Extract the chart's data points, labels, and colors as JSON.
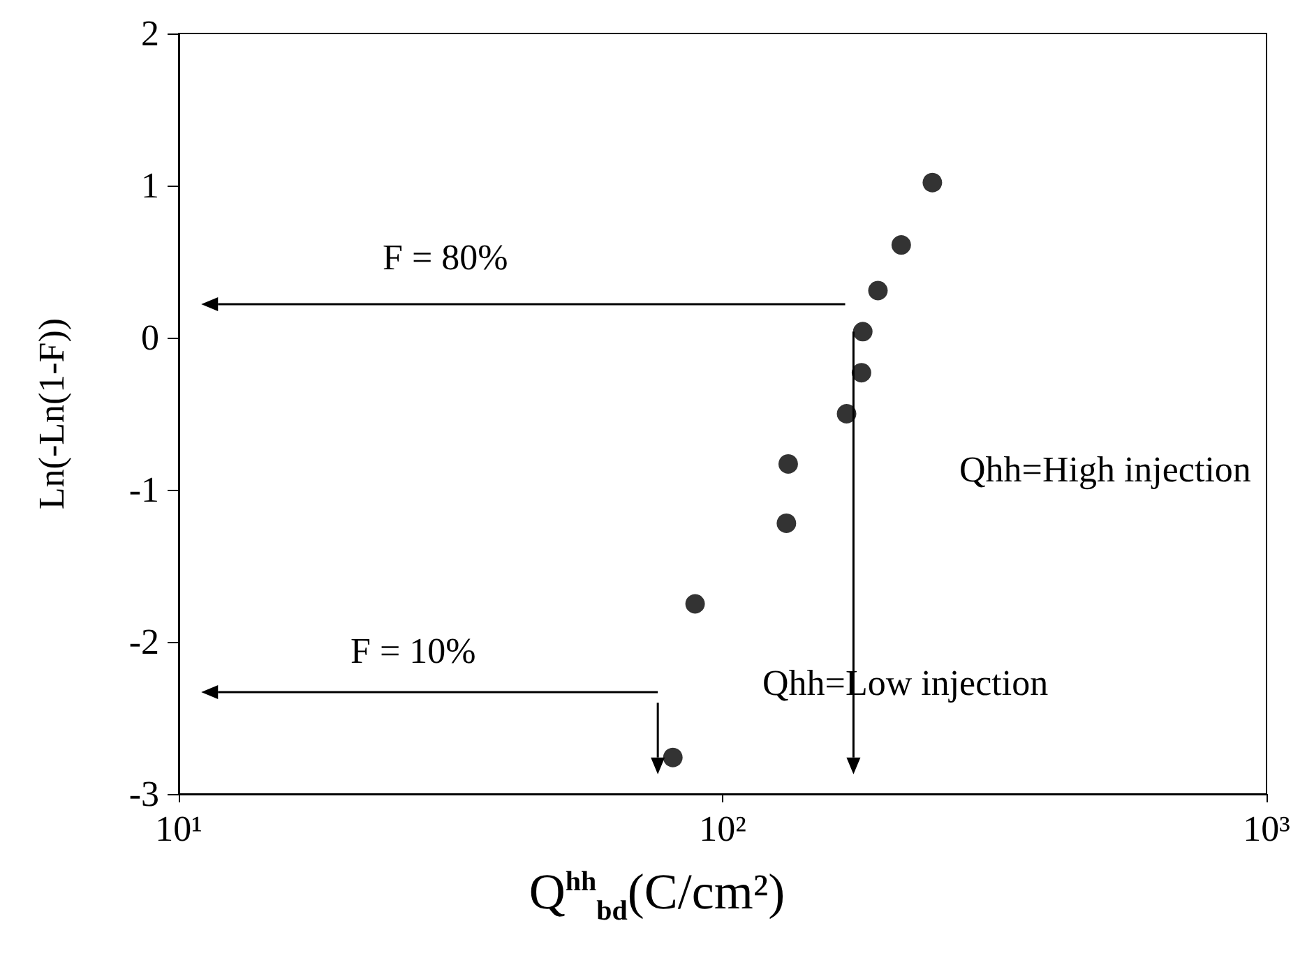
{
  "chart_data": {
    "type": "scatter",
    "xlabel": "Q$^{hh}$$_{bd}$(C/cm²)",
    "ylabel": "Ln(-Ln(1-F))",
    "log": "x",
    "marker": "circle",
    "x": [
      243,
      213,
      193,
      181,
      180,
      169,
      132,
      131,
      89,
      81
    ],
    "series": [
      {
        "color": "#000000",
        "values": [
          1.02,
          0.61,
          0.31,
          0.04,
          -0.23,
          -0.5,
          -0.83,
          -1.22,
          -1.75,
          -2.76
        ]
      }
    ],
    "xlim": [
      10,
      1000
    ],
    "xticks": [
      {
        "value": 10,
        "label": "10¹"
      },
      {
        "value": 100,
        "label": "10²"
      },
      {
        "value": 1000,
        "label": "10³"
      }
    ],
    "ylim": [
      -3,
      2
    ],
    "yticks": [
      -3,
      -2,
      -1,
      0,
      1,
      2
    ],
    "annotations": [
      "F = 80%",
      "F = 10%",
      "Qhh=High injection",
      "Qhh=Low injection"
    ]
  }
}
